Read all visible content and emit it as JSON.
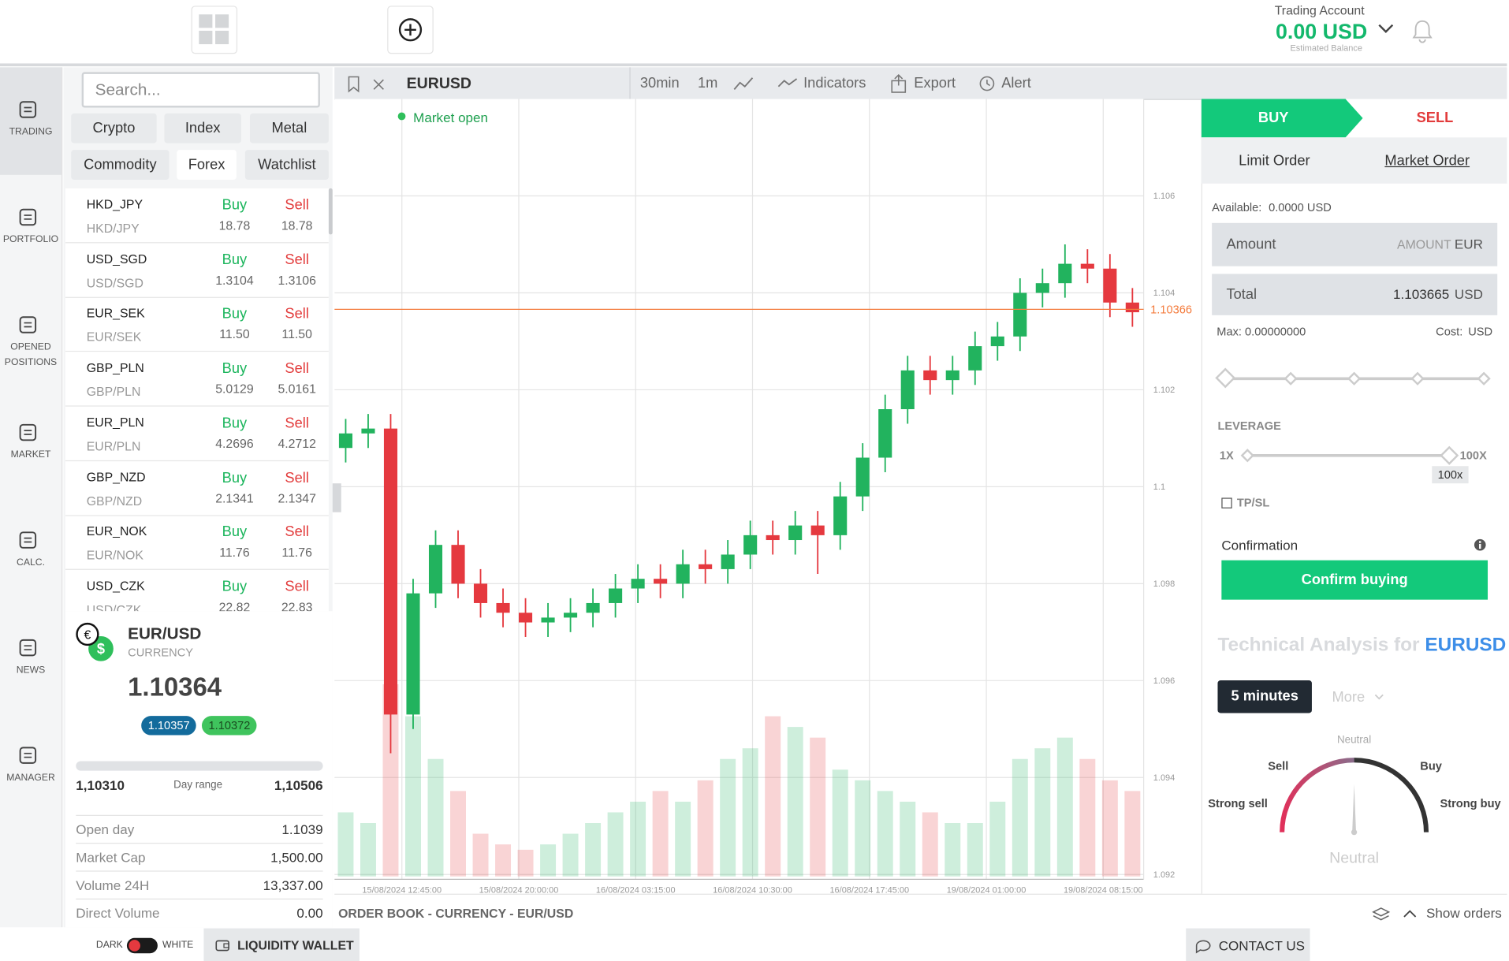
{
  "header": {
    "account_label": "Trading Account",
    "balance": "0.00 USD",
    "balance_note": "Estimated Balance"
  },
  "sidebar": {
    "items": [
      "TRADING",
      "PORTFOLIO",
      "OPENED POSITIONS",
      "MARKET",
      "CALC.",
      "NEWS",
      "MANAGER"
    ]
  },
  "market": {
    "search_placeholder": "Search...",
    "filters": [
      "Crypto",
      "Index",
      "Metal",
      "Commodity",
      "Forex",
      "Watchlist"
    ],
    "buy_label": "Buy",
    "sell_label": "Sell",
    "rows": [
      {
        "symbol": "HKD_JPY",
        "pair": "HKD/JPY",
        "buy": "18.78",
        "sell": "18.78"
      },
      {
        "symbol": "USD_SGD",
        "pair": "USD/SGD",
        "buy": "1.3104",
        "sell": "1.3106"
      },
      {
        "symbol": "EUR_SEK",
        "pair": "EUR/SEK",
        "buy": "11.50",
        "sell": "11.50"
      },
      {
        "symbol": "GBP_PLN",
        "pair": "GBP/PLN",
        "buy": "5.0129",
        "sell": "5.0161"
      },
      {
        "symbol": "EUR_PLN",
        "pair": "EUR/PLN",
        "buy": "4.2696",
        "sell": "4.2712"
      },
      {
        "symbol": "GBP_NZD",
        "pair": "GBP/NZD",
        "buy": "2.1341",
        "sell": "2.1347"
      },
      {
        "symbol": "EUR_NOK",
        "pair": "EUR/NOK",
        "buy": "11.76",
        "sell": "11.76"
      },
      {
        "symbol": "USD_CZK",
        "pair": "USD/CZK",
        "buy": "22.82",
        "sell": "22.83"
      }
    ]
  },
  "instrument": {
    "name": "EUR/USD",
    "kind": "CURRENCY",
    "price": "1.10364",
    "bid": "1.10357",
    "ask": "1.10372",
    "day_low": "1,10310",
    "day_range_label": "Day range",
    "day_high": "1,10506",
    "stats": [
      {
        "label": "Open day",
        "value": "1.1039"
      },
      {
        "label": "Market Cap",
        "value": "1,500.00"
      },
      {
        "label": "Volume 24H",
        "value": "13,337.00"
      },
      {
        "label": "Direct Volume",
        "value": "0.00"
      }
    ]
  },
  "toolbar": {
    "symbol": "EURUSD",
    "intervals": [
      "30min",
      "1m"
    ],
    "actions": [
      "Indicators",
      "Export",
      "Alert"
    ],
    "status": "Market open"
  },
  "chart_data": {
    "type": "candlestick",
    "up_color": "#22b35e",
    "down_color": "#e5393f",
    "grid": true,
    "open": [
      1.1008,
      1.1011,
      1.1012,
      1.0953,
      1.0978,
      1.0988,
      1.098,
      1.0976,
      1.0974,
      1.0972,
      1.0973,
      1.0974,
      1.0976,
      1.0979,
      1.0981,
      1.098,
      1.0984,
      1.0983,
      1.0986,
      1.099,
      1.0989,
      1.0992,
      1.099,
      1.0998,
      1.1006,
      1.1016,
      1.1024,
      1.1022,
      1.1024,
      1.1029,
      1.1031,
      1.104,
      1.1042,
      1.1046,
      1.1045,
      1.1038
    ],
    "high": [
      1.1014,
      1.1015,
      1.1015,
      1.0981,
      1.0991,
      1.0991,
      1.0983,
      1.0979,
      1.0977,
      1.0976,
      1.0977,
      1.0979,
      1.0982,
      1.0984,
      1.0984,
      1.0987,
      1.0987,
      1.0989,
      1.0993,
      1.0993,
      1.0995,
      1.0995,
      1.1001,
      1.1009,
      1.1019,
      1.1027,
      1.1027,
      1.1027,
      1.1032,
      1.1034,
      1.1043,
      1.1045,
      1.105,
      1.1049,
      1.1048,
      1.1041
    ],
    "low": [
      1.1005,
      1.1008,
      1.0945,
      1.095,
      1.0975,
      1.0977,
      1.0973,
      1.0971,
      1.0969,
      1.0969,
      1.097,
      1.0971,
      1.0973,
      1.0976,
      1.0977,
      1.0977,
      1.098,
      1.098,
      1.0983,
      1.0986,
      1.0986,
      1.0982,
      1.0987,
      1.0995,
      1.1003,
      1.1013,
      1.1019,
      1.1019,
      1.1021,
      1.1026,
      1.1028,
      1.1037,
      1.1039,
      1.1042,
      1.1035,
      1.1033
    ],
    "close": [
      1.1011,
      1.1012,
      1.0953,
      1.0978,
      1.0988,
      1.098,
      1.0976,
      1.0974,
      1.0972,
      1.0973,
      1.0974,
      1.0976,
      1.0979,
      1.0981,
      1.098,
      1.0984,
      1.0983,
      1.0986,
      1.099,
      1.0989,
      1.0992,
      1.099,
      1.0998,
      1.1006,
      1.1016,
      1.1024,
      1.1022,
      1.1024,
      1.1029,
      1.1031,
      1.104,
      1.1042,
      1.1046,
      1.1045,
      1.1038,
      1.1036
    ],
    "volume": [
      60,
      50,
      180,
      150,
      110,
      80,
      40,
      30,
      25,
      30,
      40,
      50,
      60,
      70,
      80,
      70,
      90,
      110,
      120,
      150,
      140,
      130,
      100,
      90,
      80,
      70,
      60,
      50,
      50,
      70,
      110,
      120,
      130,
      110,
      90,
      80
    ],
    "ylim": [
      1.0919,
      1.108
    ],
    "yticks": [
      1.092,
      1.094,
      1.096,
      1.098,
      1.1,
      1.102,
      1.104,
      1.106
    ],
    "xlim": [
      -0.5,
      35.5
    ],
    "xticks": [
      {
        "value": 2.5,
        "label": "15/08/2024 12:45:00"
      },
      {
        "value": 7.7,
        "label": "15/08/2024 20:00:00"
      },
      {
        "value": 12.9,
        "label": "16/08/2024 03:15:00"
      },
      {
        "value": 18.1,
        "label": "16/08/2024 10:30:00"
      },
      {
        "value": 23.3,
        "label": "16/08/2024 17:45:00"
      },
      {
        "value": 28.5,
        "label": "19/08/2024 01:00:00"
      },
      {
        "value": 33.7,
        "label": "19/08/2024 08:15:00"
      }
    ],
    "last_price": 1.10366,
    "last_price_color": "#f47b3c"
  },
  "order_book": {
    "title": "ORDER BOOK - CURRENCY - EUR/USD",
    "toggle": "Show orders"
  },
  "order": {
    "buy_tab": "BUY",
    "sell_tab": "SELL",
    "limit": "Limit Order",
    "market": "Market Order",
    "available_label": "Available:",
    "available": "0.0000 USD",
    "amount_label": "Amount",
    "amount_placeholder": "AMOUNT",
    "amount_unit": "EUR",
    "total_label": "Total",
    "total": "1.103665",
    "total_unit": "USD",
    "max": "Max: 0.00000000",
    "cost_label": "Cost:",
    "cost_unit": "USD",
    "leverage_label": "LEVERAGE",
    "leverage_min": "1X",
    "leverage_max": "100X",
    "leverage_value": "100x",
    "tpsl": "TP/SL",
    "confirmation": "Confirmation",
    "confirm_button": "Confirm buying"
  },
  "analysis": {
    "title": "Technical Analysis for",
    "symbol": "EURUSD",
    "period": "5 minutes",
    "more": "More",
    "gauge": {
      "top": "Neutral",
      "sell": "Sell",
      "buy": "Buy",
      "strong_sell": "Strong sell",
      "strong_buy": "Strong buy",
      "result": "Neutral"
    }
  },
  "footer": {
    "dark": "DARK",
    "white": "WHITE",
    "wallet": "LIQUIDITY WALLET",
    "contact": "CONTACT US"
  }
}
